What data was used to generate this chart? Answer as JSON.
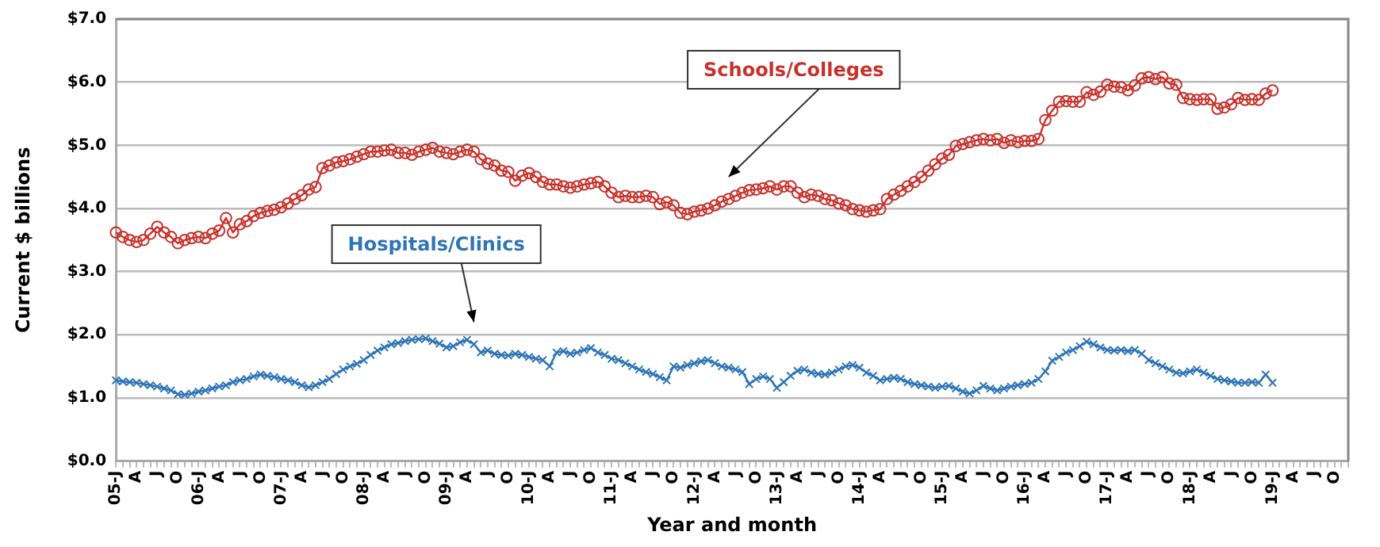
{
  "chart_data": {
    "type": "line",
    "xlabel": "Year and month",
    "ylabel": "Current $ billions",
    "categories": [
      "05-J",
      null,
      null,
      "A",
      null,
      null,
      "J",
      null,
      null,
      "O",
      null,
      null,
      "06-J",
      null,
      null,
      "A",
      null,
      null,
      "J",
      null,
      null,
      "O",
      null,
      null,
      "07-J",
      null,
      null,
      "A",
      null,
      null,
      "J",
      null,
      null,
      "O",
      null,
      null,
      "08-J",
      null,
      null,
      "A",
      null,
      null,
      "J",
      null,
      null,
      "O",
      null,
      null,
      "09-J",
      null,
      null,
      "A",
      null,
      null,
      "J",
      null,
      null,
      "O",
      null,
      null,
      "10-J",
      null,
      null,
      "A",
      null,
      null,
      "J",
      null,
      null,
      "O",
      null,
      null,
      "11-J",
      null,
      null,
      "A",
      null,
      null,
      "J",
      null,
      null,
      "O",
      null,
      null,
      "12-J",
      null,
      null,
      "A",
      null,
      null,
      "J",
      null,
      null,
      "O",
      null,
      null,
      "13-J",
      null,
      null,
      "A",
      null,
      null,
      "J",
      null,
      null,
      "O",
      null,
      null,
      "14-J",
      null,
      null,
      "A",
      null,
      null,
      "J",
      null,
      null,
      "O",
      null,
      null,
      "15-J",
      null,
      null,
      "A",
      null,
      null,
      "J",
      null,
      null,
      "O",
      null,
      null,
      "16-J",
      null,
      null,
      "A",
      null,
      null,
      "J",
      null,
      null,
      "O",
      null,
      null,
      "17-J",
      null,
      null,
      "A",
      null,
      null,
      "J",
      null,
      null,
      "O",
      null,
      null,
      "18-J",
      null,
      null,
      "A",
      null,
      null,
      "J",
      null,
      null,
      "O",
      null,
      null,
      "19-J",
      null,
      null,
      "A",
      null,
      null,
      "J",
      null,
      null,
      "O",
      null,
      null
    ],
    "series": [
      {
        "name": "Schools/Colleges",
        "color": "#c8312b",
        "marker": "circle",
        "values": [
          3.62,
          3.55,
          3.5,
          3.47,
          3.5,
          3.6,
          3.71,
          3.62,
          3.55,
          3.45,
          3.5,
          3.53,
          3.55,
          3.53,
          3.6,
          3.65,
          3.85,
          3.62,
          3.75,
          3.8,
          3.88,
          3.93,
          3.96,
          3.98,
          4.02,
          4.08,
          4.15,
          4.21,
          4.3,
          4.34,
          4.64,
          4.68,
          4.73,
          4.75,
          4.78,
          4.82,
          4.86,
          4.9,
          4.9,
          4.92,
          4.93,
          4.88,
          4.88,
          4.85,
          4.9,
          4.93,
          4.96,
          4.9,
          4.88,
          4.86,
          4.9,
          4.93,
          4.9,
          4.78,
          4.71,
          4.68,
          4.6,
          4.58,
          4.44,
          4.52,
          4.56,
          4.5,
          4.42,
          4.38,
          4.38,
          4.35,
          4.33,
          4.35,
          4.38,
          4.4,
          4.42,
          4.35,
          4.25,
          4.18,
          4.2,
          4.18,
          4.18,
          4.2,
          4.18,
          4.07,
          4.1,
          4.05,
          3.93,
          3.91,
          3.95,
          3.97,
          4.0,
          4.05,
          4.11,
          4.15,
          4.2,
          4.25,
          4.29,
          4.3,
          4.32,
          4.35,
          4.3,
          4.35,
          4.35,
          4.25,
          4.18,
          4.22,
          4.2,
          4.15,
          4.13,
          4.08,
          4.05,
          3.99,
          3.97,
          3.95,
          3.97,
          3.99,
          4.15,
          4.22,
          4.28,
          4.35,
          4.42,
          4.5,
          4.6,
          4.7,
          4.79,
          4.85,
          4.99,
          5.02,
          5.05,
          5.08,
          5.1,
          5.08,
          5.1,
          5.04,
          5.08,
          5.05,
          5.07,
          5.07,
          5.1,
          5.4,
          5.55,
          5.69,
          5.7,
          5.69,
          5.69,
          5.84,
          5.8,
          5.85,
          5.96,
          5.93,
          5.92,
          5.87,
          5.95,
          6.06,
          6.08,
          6.05,
          6.08,
          5.98,
          5.96,
          5.75,
          5.73,
          5.72,
          5.73,
          5.73,
          5.58,
          5.6,
          5.65,
          5.75,
          5.72,
          5.73,
          5.72,
          5.82,
          5.87,
          null,
          null,
          null,
          null,
          null,
          null,
          null,
          null,
          null,
          null,
          null
        ]
      },
      {
        "name": "Hospitals/Clinics",
        "color": "#2e75b6",
        "marker": "cross",
        "values": [
          1.28,
          1.26,
          1.25,
          1.24,
          1.22,
          1.2,
          1.18,
          1.15,
          1.12,
          1.06,
          1.05,
          1.07,
          1.1,
          1.12,
          1.15,
          1.18,
          1.2,
          1.25,
          1.28,
          1.3,
          1.34,
          1.37,
          1.35,
          1.33,
          1.3,
          1.28,
          1.25,
          1.2,
          1.17,
          1.2,
          1.25,
          1.3,
          1.38,
          1.45,
          1.5,
          1.54,
          1.6,
          1.68,
          1.75,
          1.8,
          1.85,
          1.87,
          1.9,
          1.92,
          1.93,
          1.94,
          1.9,
          1.86,
          1.8,
          1.82,
          1.88,
          1.92,
          1.85,
          1.72,
          1.75,
          1.7,
          1.68,
          1.67,
          1.7,
          1.68,
          1.65,
          1.62,
          1.6,
          1.5,
          1.72,
          1.74,
          1.7,
          1.72,
          1.76,
          1.79,
          1.72,
          1.68,
          1.62,
          1.6,
          1.55,
          1.5,
          1.45,
          1.41,
          1.38,
          1.33,
          1.28,
          1.5,
          1.48,
          1.52,
          1.55,
          1.58,
          1.6,
          1.55,
          1.5,
          1.48,
          1.45,
          1.41,
          1.22,
          1.3,
          1.34,
          1.3,
          1.16,
          1.25,
          1.35,
          1.43,
          1.45,
          1.4,
          1.38,
          1.37,
          1.4,
          1.45,
          1.5,
          1.52,
          1.48,
          1.4,
          1.35,
          1.28,
          1.3,
          1.32,
          1.3,
          1.25,
          1.22,
          1.2,
          1.18,
          1.16,
          1.18,
          1.19,
          1.15,
          1.1,
          1.07,
          1.12,
          1.19,
          1.15,
          1.12,
          1.15,
          1.18,
          1.2,
          1.22,
          1.24,
          1.3,
          1.42,
          1.59,
          1.65,
          1.72,
          1.76,
          1.82,
          1.89,
          1.85,
          1.8,
          1.76,
          1.75,
          1.76,
          1.74,
          1.76,
          1.7,
          1.6,
          1.55,
          1.5,
          1.45,
          1.4,
          1.39,
          1.42,
          1.45,
          1.4,
          1.35,
          1.3,
          1.28,
          1.26,
          1.24,
          1.24,
          1.25,
          1.24,
          1.37,
          1.24,
          null,
          null,
          null,
          null,
          null,
          null,
          null,
          null,
          null,
          null,
          null
        ]
      }
    ],
    "ylim": [
      0,
      7
    ],
    "yticks": [
      {
        "value": 0,
        "label": "$0.0"
      },
      {
        "value": 1,
        "label": "$1.0"
      },
      {
        "value": 2,
        "label": "$2.0"
      },
      {
        "value": 3,
        "label": "$3.0"
      },
      {
        "value": 4,
        "label": "$4.0"
      },
      {
        "value": 5,
        "label": "$5.0"
      },
      {
        "value": 6,
        "label": "$6.0"
      },
      {
        "value": 7,
        "label": "$7.0"
      }
    ],
    "grid": "y",
    "line_style": "solid"
  }
}
